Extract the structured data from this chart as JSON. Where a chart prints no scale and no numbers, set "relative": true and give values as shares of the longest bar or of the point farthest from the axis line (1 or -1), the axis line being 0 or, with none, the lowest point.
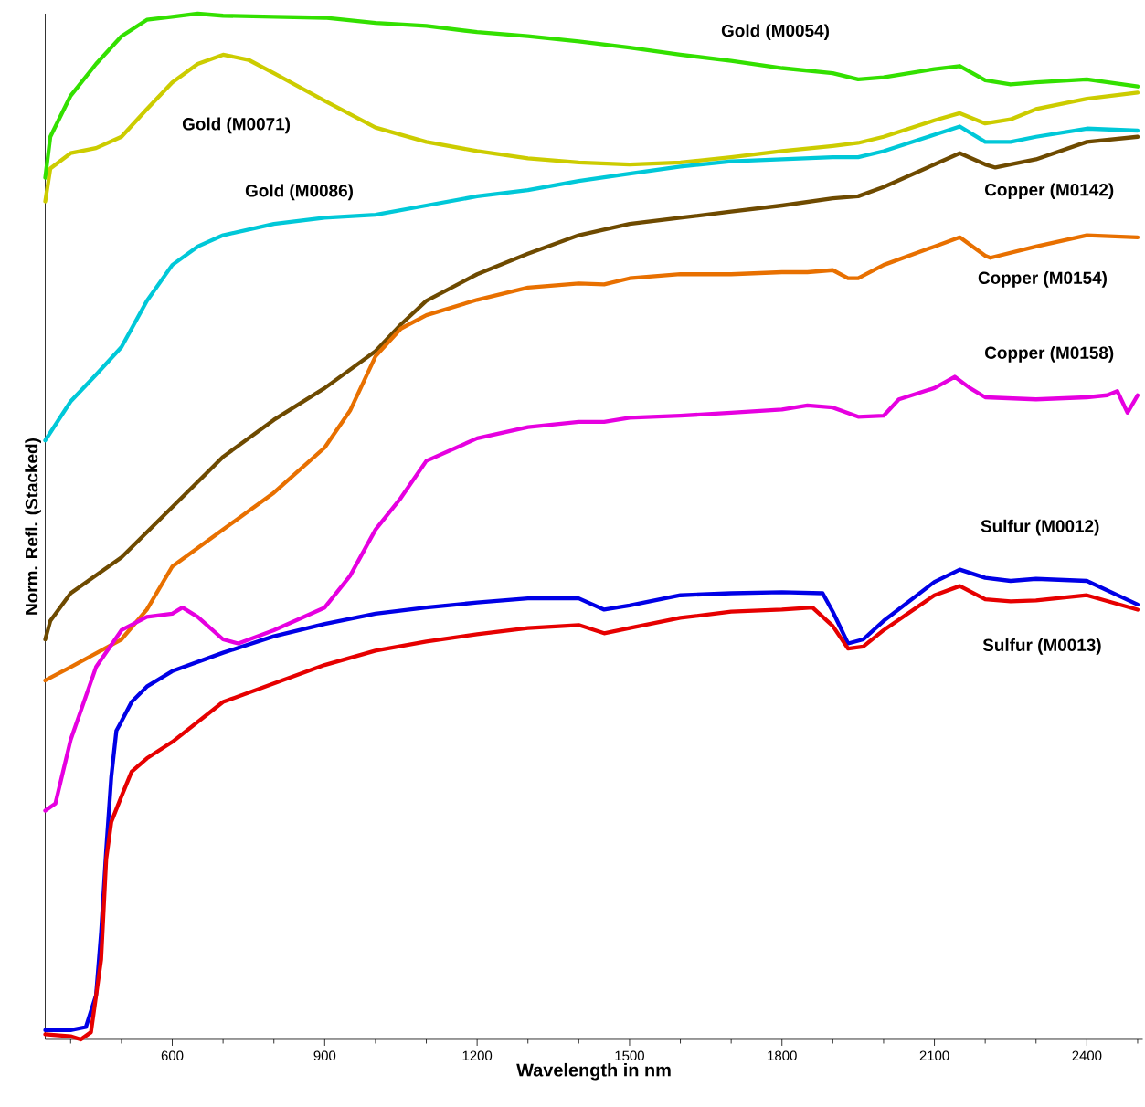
{
  "chart_data": {
    "type": "line",
    "relative": true,
    "xlabel": "Wavelength in nm",
    "ylabel": "Norm. Refl. (Stacked)",
    "xlim": [
      350,
      2510
    ],
    "xticks": [
      {
        "value": 400,
        "label": null
      },
      {
        "value": 500,
        "label": null
      },
      600,
      {
        "value": 700,
        "label": null
      },
      {
        "value": 800,
        "label": null
      },
      900,
      {
        "value": 1000,
        "label": null
      },
      {
        "value": 1100,
        "label": null
      },
      1200,
      {
        "value": 1300,
        "label": null
      },
      {
        "value": 1400,
        "label": null
      },
      1500,
      {
        "value": 1600,
        "label": null
      },
      {
        "value": 1700,
        "label": null
      },
      1800,
      {
        "value": 1900,
        "label": null
      },
      {
        "value": 2000,
        "label": null
      },
      2100,
      {
        "value": 2200,
        "label": null
      },
      {
        "value": 2300,
        "label": null
      },
      2400,
      {
        "value": 2500,
        "label": null
      }
    ],
    "tick_labels": "x",
    "marker": "none",
    "line_style": "solid",
    "series": [
      {
        "name": "Gold (M0054)",
        "color": "#33e000",
        "x": [
          350,
          360,
          400,
          450,
          500,
          550,
          600,
          650,
          700,
          800,
          900,
          1000,
          1100,
          1200,
          1300,
          1400,
          1500,
          1600,
          1700,
          1800,
          1900,
          1950,
          2000,
          2100,
          2150,
          2200,
          2250,
          2300,
          2400,
          2500
        ],
        "values": [
          0.84,
          0.88,
          0.92,
          0.951,
          0.978,
          0.994,
          0.997,
          1.0,
          0.998,
          0.997,
          0.996,
          0.991,
          0.988,
          0.982,
          0.978,
          0.973,
          0.967,
          0.96,
          0.954,
          0.947,
          0.942,
          0.936,
          0.938,
          0.946,
          0.949,
          0.935,
          0.931,
          0.933,
          0.936,
          0.929
        ]
      },
      {
        "name": "Gold (M0071)",
        "color": "#cccc00",
        "x": [
          350,
          360,
          400,
          450,
          500,
          550,
          600,
          650,
          700,
          750,
          800,
          900,
          1000,
          1100,
          1200,
          1300,
          1400,
          1500,
          1600,
          1700,
          1800,
          1900,
          1950,
          2000,
          2100,
          2150,
          2200,
          2250,
          2300,
          2400,
          2500
        ],
        "values": [
          0.817,
          0.849,
          0.864,
          0.869,
          0.88,
          0.907,
          0.933,
          0.951,
          0.96,
          0.955,
          0.942,
          0.915,
          0.889,
          0.875,
          0.866,
          0.859,
          0.855,
          0.853,
          0.855,
          0.86,
          0.866,
          0.871,
          0.874,
          0.88,
          0.896,
          0.903,
          0.893,
          0.897,
          0.907,
          0.917,
          0.923
        ]
      },
      {
        "name": "Gold (M0086)",
        "color": "#00c8d8",
        "x": [
          350,
          400,
          450,
          500,
          550,
          600,
          650,
          700,
          800,
          900,
          1000,
          1100,
          1200,
          1300,
          1400,
          1500,
          1600,
          1700,
          1800,
          1900,
          1950,
          2000,
          2100,
          2150,
          2200,
          2250,
          2300,
          2400,
          2500
        ],
        "values": [
          0.584,
          0.622,
          0.648,
          0.675,
          0.72,
          0.755,
          0.773,
          0.784,
          0.795,
          0.801,
          0.804,
          0.813,
          0.822,
          0.828,
          0.837,
          0.844,
          0.851,
          0.856,
          0.858,
          0.86,
          0.86,
          0.866,
          0.882,
          0.89,
          0.875,
          0.875,
          0.88,
          0.888,
          0.886
        ]
      },
      {
        "name": "Copper (M0142)",
        "color": "#6e4a00",
        "x": [
          350,
          360,
          400,
          500,
          600,
          700,
          800,
          900,
          1000,
          1050,
          1100,
          1200,
          1300,
          1400,
          1500,
          1600,
          1700,
          1800,
          1900,
          1950,
          2000,
          2100,
          2150,
          2200,
          2220,
          2300,
          2400,
          2500
        ],
        "values": [
          0.39,
          0.408,
          0.435,
          0.47,
          0.519,
          0.568,
          0.604,
          0.635,
          0.671,
          0.697,
          0.72,
          0.746,
          0.766,
          0.784,
          0.795,
          0.801,
          0.807,
          0.813,
          0.82,
          0.822,
          0.831,
          0.853,
          0.864,
          0.853,
          0.85,
          0.858,
          0.875,
          0.88
        ]
      },
      {
        "name": "Copper (M0154)",
        "color": "#e87000",
        "x": [
          350,
          400,
          500,
          550,
          600,
          700,
          800,
          900,
          950,
          1000,
          1050,
          1100,
          1200,
          1300,
          1400,
          1450,
          1500,
          1600,
          1700,
          1800,
          1850,
          1900,
          1930,
          1950,
          2000,
          2100,
          2150,
          2200,
          2210,
          2300,
          2400,
          2500
        ],
        "values": [
          0.35,
          0.363,
          0.39,
          0.419,
          0.461,
          0.497,
          0.533,
          0.577,
          0.613,
          0.666,
          0.693,
          0.706,
          0.721,
          0.733,
          0.737,
          0.736,
          0.742,
          0.746,
          0.746,
          0.748,
          0.748,
          0.75,
          0.742,
          0.742,
          0.755,
          0.773,
          0.782,
          0.764,
          0.762,
          0.773,
          0.784,
          0.782
        ]
      },
      {
        "name": "Copper (M0158)",
        "color": "#e600e0",
        "x": [
          350,
          370,
          400,
          450,
          500,
          550,
          600,
          620,
          650,
          700,
          730,
          800,
          900,
          950,
          1000,
          1050,
          1100,
          1200,
          1300,
          1400,
          1450,
          1500,
          1600,
          1700,
          1800,
          1850,
          1900,
          1950,
          2000,
          2030,
          2100,
          2140,
          2170,
          2200,
          2300,
          2400,
          2440,
          2460,
          2480,
          2500
        ],
        "values": [
          0.223,
          0.23,
          0.292,
          0.363,
          0.399,
          0.412,
          0.415,
          0.421,
          0.412,
          0.39,
          0.386,
          0.399,
          0.421,
          0.452,
          0.497,
          0.528,
          0.564,
          0.586,
          0.597,
          0.602,
          0.602,
          0.606,
          0.608,
          0.611,
          0.614,
          0.618,
          0.616,
          0.607,
          0.608,
          0.624,
          0.635,
          0.646,
          0.635,
          0.626,
          0.624,
          0.626,
          0.628,
          0.632,
          0.611,
          0.628
        ]
      },
      {
        "name": "Sulfur (M0012)",
        "color": "#0000e6",
        "x": [
          350,
          400,
          430,
          450,
          460,
          470,
          480,
          490,
          500,
          520,
          550,
          600,
          700,
          800,
          900,
          1000,
          1100,
          1200,
          1300,
          1400,
          1450,
          1500,
          1600,
          1700,
          1800,
          1880,
          1900,
          1930,
          1960,
          2000,
          2100,
          2150,
          2200,
          2250,
          2300,
          2400,
          2500
        ],
        "values": [
          0.009,
          0.009,
          0.012,
          0.043,
          0.105,
          0.185,
          0.256,
          0.301,
          0.31,
          0.329,
          0.344,
          0.359,
          0.377,
          0.393,
          0.405,
          0.415,
          0.421,
          0.426,
          0.43,
          0.43,
          0.419,
          0.423,
          0.433,
          0.435,
          0.436,
          0.435,
          0.417,
          0.386,
          0.39,
          0.408,
          0.446,
          0.458,
          0.45,
          0.447,
          0.449,
          0.447,
          0.424
        ]
      },
      {
        "name": "Sulfur (M0013)",
        "color": "#e60000",
        "x": [
          350,
          400,
          420,
          440,
          460,
          470,
          480,
          500,
          520,
          550,
          600,
          700,
          800,
          900,
          1000,
          1100,
          1200,
          1300,
          1400,
          1450,
          1500,
          1600,
          1700,
          1800,
          1860,
          1900,
          1930,
          1960,
          2000,
          2100,
          2150,
          2200,
          2250,
          2300,
          2400,
          2500
        ],
        "values": [
          0.005,
          0.003,
          0.0,
          0.007,
          0.078,
          0.176,
          0.212,
          0.237,
          0.261,
          0.274,
          0.29,
          0.329,
          0.347,
          0.365,
          0.379,
          0.388,
          0.395,
          0.401,
          0.404,
          0.396,
          0.401,
          0.411,
          0.417,
          0.419,
          0.421,
          0.403,
          0.381,
          0.383,
          0.399,
          0.433,
          0.442,
          0.429,
          0.427,
          0.428,
          0.433,
          0.419
        ]
      }
    ]
  }
}
